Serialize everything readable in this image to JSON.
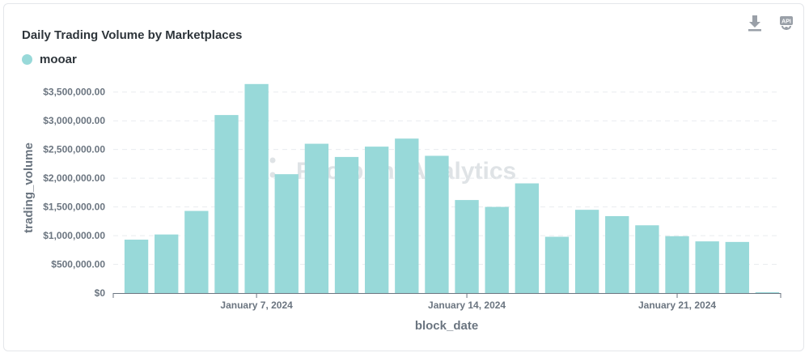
{
  "header": {
    "title": "Daily Trading Volume by Marketplaces",
    "download_icon": "download-icon",
    "api_icon": "api-icon",
    "api_label": "API"
  },
  "legend": {
    "label": "mooar",
    "color": "#98d9d9"
  },
  "watermark": "Footprint Analytics",
  "chart_data": {
    "type": "bar",
    "xlabel": "block_date",
    "ylabel": "trading_volume",
    "ylim": [
      0,
      3750000
    ],
    "yticks": [
      0,
      500000,
      1000000,
      1500000,
      2000000,
      2500000,
      3000000,
      3500000
    ],
    "ytick_labels": [
      "$0",
      "$500,000.00",
      "$1,000,000.00",
      "$1,500,000.00",
      "$2,000,000.00",
      "$2,500,000.00",
      "$3,000,000.00",
      "$3,500,000.00"
    ],
    "xtick_labels": [
      {
        "date": "2024-01-07",
        "label": "January 7, 2024"
      },
      {
        "date": "2024-01-14",
        "label": "January 14, 2024"
      },
      {
        "date": "2024-01-21",
        "label": "January 21, 2024"
      }
    ],
    "categories": [
      "2024-01-03",
      "2024-01-04",
      "2024-01-05",
      "2024-01-06",
      "2024-01-07",
      "2024-01-08",
      "2024-01-09",
      "2024-01-10",
      "2024-01-11",
      "2024-01-12",
      "2024-01-13",
      "2024-01-14",
      "2024-01-15",
      "2024-01-16",
      "2024-01-17",
      "2024-01-18",
      "2024-01-19",
      "2024-01-20",
      "2024-01-21",
      "2024-01-22",
      "2024-01-23",
      "2024-01-24"
    ],
    "series": [
      {
        "name": "mooar",
        "color": "#98d9d9",
        "values": [
          930000,
          1020000,
          1430000,
          3100000,
          3640000,
          2070000,
          2600000,
          2370000,
          2550000,
          2690000,
          2390000,
          1620000,
          1500000,
          1910000,
          980000,
          1450000,
          1340000,
          1180000,
          990000,
          900000,
          890000,
          10000
        ]
      }
    ],
    "grid": true,
    "legend_position": "top-left"
  }
}
